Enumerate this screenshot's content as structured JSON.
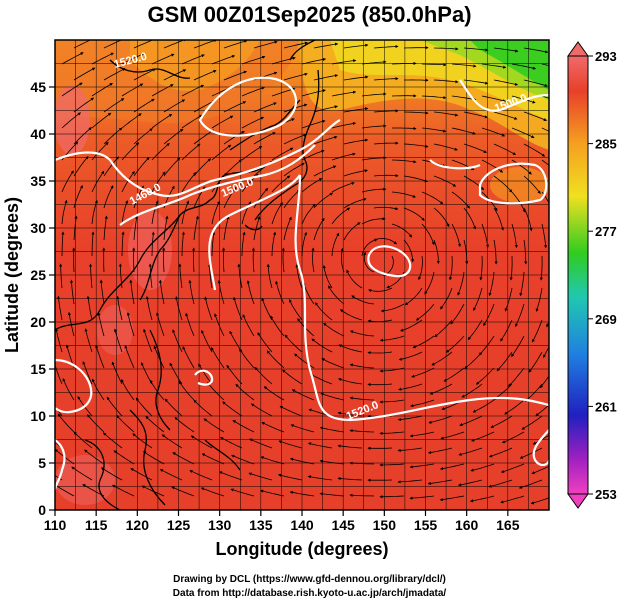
{
  "title": "GSM 00Z01Sep2025 (850.0hPa)",
  "xaxis": {
    "label": "Longitude (degrees)",
    "ticks": [
      "110",
      "115",
      "120",
      "125",
      "130",
      "135",
      "140",
      "145",
      "150",
      "155",
      "160",
      "165"
    ],
    "range": [
      110,
      170
    ]
  },
  "yaxis": {
    "label": "Latitude  (degrees)",
    "ticks": [
      "0",
      "5",
      "10",
      "15",
      "20",
      "25",
      "30",
      "35",
      "40",
      "45"
    ],
    "range": [
      0,
      50
    ]
  },
  "colorbar": {
    "ticks": [
      "293",
      "285",
      "277",
      "269",
      "261",
      "253"
    ],
    "range": [
      253,
      293
    ]
  },
  "contour_labels": [
    "1460.0",
    "1500.0",
    "1520.0",
    "1500.0",
    "1520.0"
  ],
  "credits": {
    "line1": "Drawing by DCL (https://www.gfd-dennou.org/library/dcl/)",
    "line2": "Data from http://database.rish.kyoto-u.ac.jp/arch/jmadata/"
  },
  "colors": {
    "warm": "#e8402a",
    "hot": "#f06a6a",
    "mid": "#f5a020",
    "yellow": "#f0e020",
    "green": "#30cc20",
    "contour": "#ffffff",
    "stream": "#000000"
  }
}
